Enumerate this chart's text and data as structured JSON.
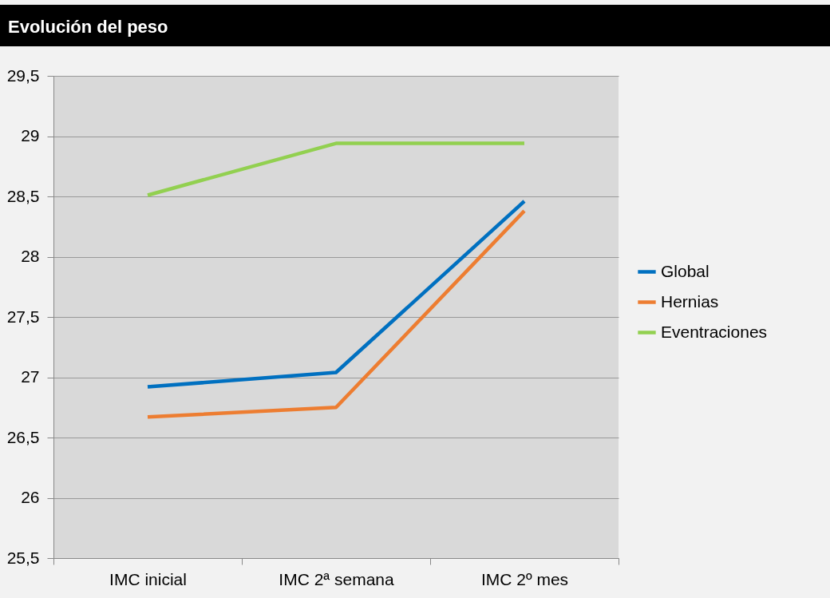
{
  "chart_data": {
    "type": "line",
    "title": "Evolución del peso",
    "categories": [
      "IMC inicial",
      "IMC 2ª semana",
      "IMC 2º mes"
    ],
    "series": [
      {
        "name": "Global",
        "color": "#0070c0",
        "values": [
          26.92,
          27.04,
          28.46
        ]
      },
      {
        "name": "Hernias",
        "color": "#ed7d31",
        "values": [
          26.67,
          26.75,
          28.38
        ]
      },
      {
        "name": "Eventraciones",
        "color": "#92d050",
        "values": [
          28.51,
          28.94,
          28.94
        ]
      }
    ],
    "ylim": [
      25.5,
      29.5
    ],
    "yticks": [
      {
        "value": 25.5,
        "label": "25,5"
      },
      26,
      {
        "value": 26.5,
        "label": "26,5"
      },
      27,
      {
        "value": 27.5,
        "label": "27,5"
      },
      28,
      {
        "value": 28.5,
        "label": "28,5"
      },
      29,
      {
        "value": 29.5,
        "label": "29,5"
      }
    ],
    "grid": "y",
    "legend": "right",
    "marker": "none",
    "line_style": "solid"
  }
}
